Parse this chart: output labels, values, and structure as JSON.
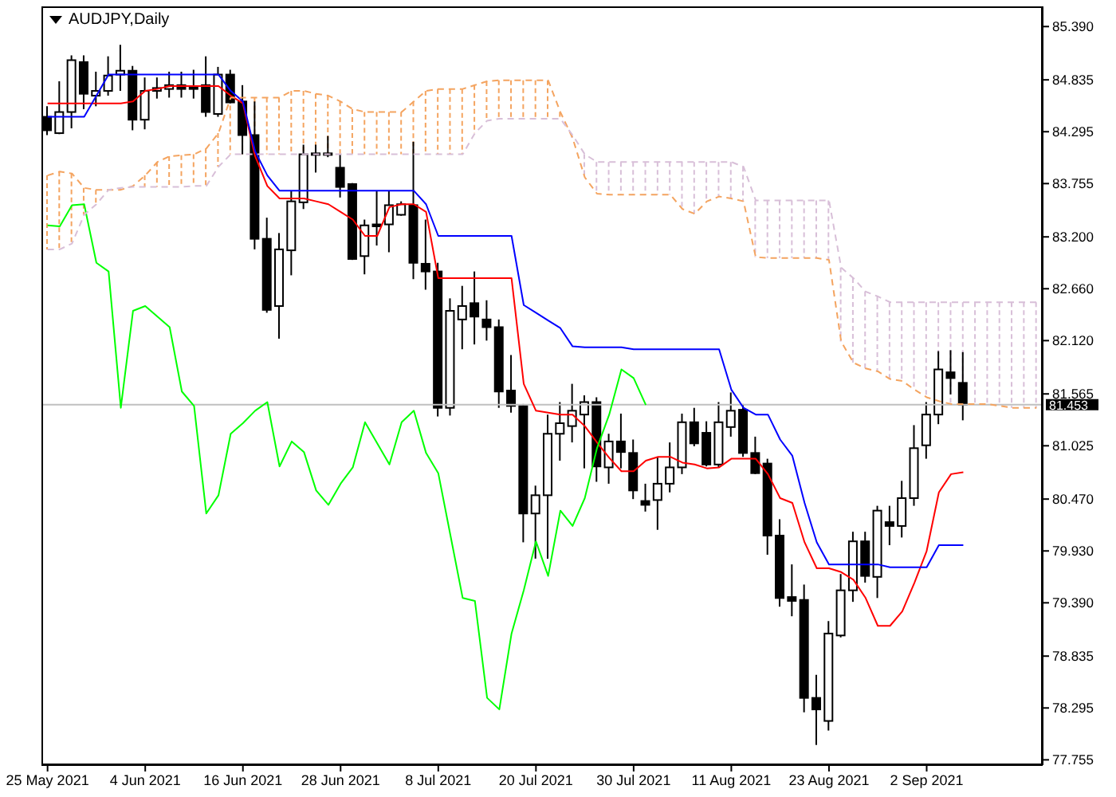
{
  "chart_data": {
    "type": "candlestick",
    "title": "AUDJPY,Daily",
    "categories": [
      "25 May 2021",
      null,
      null,
      null,
      null,
      null,
      null,
      null,
      "4 Jun 2021",
      null,
      null,
      null,
      null,
      null,
      null,
      null,
      "16 Jun 2021",
      null,
      null,
      null,
      null,
      null,
      null,
      null,
      "28 Jun 2021",
      null,
      null,
      null,
      null,
      null,
      null,
      null,
      "8 Jul 2021",
      null,
      null,
      null,
      null,
      null,
      null,
      null,
      "20 Jul 2021",
      null,
      null,
      null,
      null,
      null,
      null,
      null,
      "30 Jul 2021",
      null,
      null,
      null,
      null,
      null,
      null,
      null,
      "11 Aug 2021",
      null,
      null,
      null,
      null,
      null,
      null,
      null,
      "23 Aug 2021",
      null,
      null,
      null,
      null,
      null,
      null,
      null,
      "2 Sep 2021",
      null,
      null,
      null,
      null,
      null,
      null,
      null,
      null,
      null
    ],
    "ohlc": [
      [
        84.45,
        84.56,
        84.26,
        84.31
      ],
      [
        84.28,
        84.82,
        84.27,
        84.5
      ],
      [
        84.5,
        85.09,
        84.33,
        85.04
      ],
      [
        85.02,
        85.09,
        84.53,
        84.69
      ],
      [
        84.67,
        84.92,
        84.56,
        84.72
      ],
      [
        84.72,
        85.08,
        84.67,
        84.88
      ],
      [
        84.89,
        85.2,
        84.72,
        84.93
      ],
      [
        84.93,
        84.98,
        84.31,
        84.42
      ],
      [
        84.42,
        84.86,
        84.32,
        84.72
      ],
      [
        84.72,
        84.86,
        84.64,
        84.75
      ],
      [
        84.74,
        84.92,
        84.65,
        84.78
      ],
      [
        84.78,
        84.92,
        84.65,
        84.74
      ],
      [
        84.77,
        84.94,
        84.64,
        84.74
      ],
      [
        84.78,
        85.08,
        84.45,
        84.5
      ],
      [
        84.48,
        84.97,
        84.45,
        84.89
      ],
      [
        84.89,
        84.94,
        84.59,
        84.6
      ],
      [
        84.61,
        84.78,
        84.06,
        84.26
      ],
      [
        84.26,
        84.61,
        83.07,
        83.18
      ],
      [
        83.18,
        83.4,
        82.41,
        82.44
      ],
      [
        82.48,
        83.24,
        82.14,
        83.07
      ],
      [
        83.06,
        83.68,
        82.8,
        83.57
      ],
      [
        83.56,
        84.16,
        83.49,
        84.06
      ],
      [
        84.06,
        84.16,
        83.87,
        84.07
      ],
      [
        84.06,
        84.25,
        84.03,
        84.07
      ],
      [
        83.92,
        84.06,
        83.61,
        83.72
      ],
      [
        83.75,
        83.76,
        82.96,
        82.97
      ],
      [
        83.0,
        83.38,
        82.81,
        83.32
      ],
      [
        83.33,
        83.68,
        83.11,
        83.31
      ],
      [
        83.33,
        83.68,
        83.04,
        83.53
      ],
      [
        83.43,
        83.57,
        83.42,
        83.54
      ],
      [
        83.53,
        84.19,
        82.76,
        82.93
      ],
      [
        82.92,
        83.38,
        82.65,
        82.84
      ],
      [
        82.84,
        82.93,
        81.33,
        81.42
      ],
      [
        81.42,
        82.56,
        81.34,
        82.43
      ],
      [
        82.34,
        82.69,
        82.03,
        82.48
      ],
      [
        82.51,
        82.84,
        82.08,
        82.37
      ],
      [
        82.34,
        82.54,
        82.12,
        82.26
      ],
      [
        82.26,
        82.34,
        81.42,
        81.59
      ],
      [
        81.6,
        81.97,
        81.37,
        81.44
      ],
      [
        81.44,
        81.46,
        80.02,
        80.32
      ],
      [
        80.32,
        80.61,
        79.85,
        80.51
      ],
      [
        80.51,
        81.35,
        79.85,
        81.15
      ],
      [
        81.15,
        81.48,
        80.87,
        81.26
      ],
      [
        81.23,
        81.67,
        81.06,
        81.39
      ],
      [
        81.35,
        81.55,
        80.79,
        81.48
      ],
      [
        81.48,
        81.53,
        80.65,
        80.81
      ],
      [
        80.8,
        81.15,
        80.63,
        81.07
      ],
      [
        81.07,
        81.36,
        80.79,
        80.96
      ],
      [
        80.95,
        81.09,
        80.47,
        80.56
      ],
      [
        80.45,
        80.63,
        80.34,
        80.41
      ],
      [
        80.46,
        80.91,
        80.15,
        80.63
      ],
      [
        80.63,
        81.06,
        80.54,
        80.8
      ],
      [
        80.8,
        81.36,
        80.73,
        81.27
      ],
      [
        81.27,
        81.42,
        81.02,
        81.05
      ],
      [
        81.16,
        81.28,
        80.81,
        80.83
      ],
      [
        80.83,
        81.48,
        80.8,
        81.27
      ],
      [
        81.22,
        81.58,
        81.12,
        81.39
      ],
      [
        81.4,
        81.46,
        80.91,
        80.95
      ],
      [
        80.95,
        81.12,
        80.73,
        80.74
      ],
      [
        80.84,
        80.89,
        79.89,
        80.09
      ],
      [
        80.09,
        80.26,
        79.35,
        79.44
      ],
      [
        79.45,
        79.79,
        79.25,
        79.41
      ],
      [
        79.42,
        79.58,
        78.25,
        78.4
      ],
      [
        78.4,
        78.64,
        77.91,
        78.28
      ],
      [
        78.16,
        79.2,
        78.06,
        79.07
      ],
      [
        79.05,
        79.69,
        79.03,
        79.52
      ],
      [
        79.52,
        80.13,
        79.4,
        80.03
      ],
      [
        80.03,
        80.13,
        79.6,
        79.67
      ],
      [
        79.66,
        80.4,
        79.44,
        80.35
      ],
      [
        80.23,
        80.4,
        79.99,
        80.19
      ],
      [
        80.19,
        80.66,
        80.07,
        80.48
      ],
      [
        80.48,
        81.24,
        80.4,
        81.0
      ],
      [
        81.03,
        81.48,
        80.89,
        81.35
      ],
      [
        81.35,
        82.01,
        81.25,
        81.82
      ],
      [
        81.79,
        82.02,
        81.56,
        81.73
      ],
      [
        81.68,
        82.0,
        81.29,
        81.453
      ],
      null,
      null,
      null,
      null,
      null,
      null
    ],
    "series": [
      {
        "type": "line",
        "color": "#ff0000",
        "line_style": "solid",
        "values": [
          84.59,
          84.59,
          84.59,
          84.59,
          84.59,
          84.59,
          84.59,
          84.61,
          84.72,
          84.74,
          84.77,
          84.77,
          84.77,
          84.77,
          84.77,
          84.67,
          84.59,
          84.04,
          83.73,
          83.6,
          83.6,
          83.6,
          83.57,
          83.54,
          83.46,
          83.38,
          83.21,
          83.21,
          83.51,
          83.54,
          83.54,
          83.46,
          82.77,
          82.77,
          82.77,
          82.77,
          82.77,
          82.77,
          82.77,
          81.67,
          81.39,
          81.37,
          81.35,
          81.35,
          81.23,
          81.06,
          80.9,
          80.76,
          80.76,
          80.87,
          80.91,
          80.91,
          80.85,
          80.83,
          80.79,
          80.8,
          80.89,
          80.89,
          80.89,
          80.73,
          80.48,
          80.43,
          80.02,
          79.75,
          79.75,
          79.71,
          79.63,
          79.44,
          79.15,
          79.15,
          79.3,
          79.6,
          79.93,
          80.54,
          80.73,
          80.75,
          null,
          null,
          null,
          null,
          null,
          null
        ]
      },
      {
        "type": "line",
        "color": "#0000ff",
        "line_style": "solid",
        "values": [
          84.45,
          84.45,
          84.45,
          84.45,
          84.67,
          84.89,
          84.89,
          84.89,
          84.89,
          84.89,
          84.89,
          84.89,
          84.89,
          84.89,
          84.89,
          84.72,
          84.61,
          84.09,
          83.84,
          83.68,
          83.68,
          83.68,
          83.68,
          83.68,
          83.68,
          83.68,
          83.68,
          83.68,
          83.68,
          83.68,
          83.68,
          83.54,
          83.21,
          83.21,
          83.21,
          83.21,
          83.21,
          83.21,
          83.21,
          82.49,
          82.41,
          82.33,
          82.25,
          82.06,
          82.05,
          82.05,
          82.05,
          82.05,
          82.03,
          82.03,
          82.03,
          82.03,
          82.03,
          82.03,
          82.03,
          82.03,
          81.61,
          81.42,
          81.35,
          81.35,
          81.09,
          80.92,
          80.43,
          80.02,
          79.79,
          79.79,
          79.79,
          79.79,
          79.79,
          79.76,
          79.76,
          79.76,
          79.76,
          79.99,
          79.99,
          79.99,
          null,
          null,
          null,
          null,
          null,
          null
        ]
      },
      {
        "type": "line",
        "color": "#00ff00",
        "line_style": "solid",
        "values": [
          83.32,
          83.31,
          83.53,
          83.54,
          82.93,
          82.84,
          81.42,
          82.43,
          82.48,
          82.37,
          82.26,
          81.59,
          81.44,
          80.32,
          80.51,
          81.15,
          81.26,
          81.39,
          81.48,
          80.81,
          81.07,
          80.96,
          80.56,
          80.41,
          80.63,
          80.8,
          81.27,
          81.05,
          80.83,
          81.27,
          81.39,
          80.95,
          80.74,
          80.09,
          79.44,
          79.41,
          78.4,
          78.28,
          79.07,
          79.52,
          80.03,
          79.67,
          80.35,
          80.19,
          80.48,
          81.0,
          81.35,
          81.82,
          81.73,
          81.45,
          null,
          null,
          null,
          null,
          null,
          null,
          null,
          null,
          null,
          null,
          null,
          null,
          null,
          null,
          null,
          null,
          null,
          null,
          null,
          null,
          null,
          null,
          null,
          null,
          null,
          null,
          null,
          null,
          null,
          null,
          null,
          null
        ]
      },
      {
        "type": "line",
        "color": "#f4a460",
        "line_style": "dashed",
        "values": [
          83.84,
          83.88,
          83.86,
          83.71,
          83.69,
          83.69,
          83.69,
          83.73,
          83.84,
          83.98,
          84.04,
          84.05,
          84.06,
          84.12,
          84.28,
          84.65,
          84.65,
          84.65,
          84.65,
          84.65,
          84.72,
          84.72,
          84.69,
          84.67,
          84.61,
          84.53,
          84.5,
          84.5,
          84.5,
          84.5,
          84.61,
          84.72,
          84.74,
          84.74,
          84.74,
          84.78,
          84.82,
          84.83,
          84.83,
          84.83,
          84.83,
          84.83,
          84.5,
          84.23,
          83.82,
          83.65,
          83.64,
          83.64,
          83.64,
          83.64,
          83.64,
          83.64,
          83.49,
          83.44,
          83.57,
          83.62,
          83.6,
          83.57,
          82.99,
          82.98,
          82.98,
          82.98,
          82.98,
          82.98,
          82.96,
          82.11,
          81.89,
          81.83,
          81.8,
          81.72,
          81.7,
          81.61,
          81.53,
          81.49,
          81.46,
          81.46,
          81.46,
          81.46,
          81.44,
          81.42,
          81.42,
          81.42
        ]
      },
      {
        "type": "line",
        "color": "#d8bfd8",
        "line_style": "dashed",
        "values": [
          83.07,
          83.07,
          83.13,
          83.43,
          83.54,
          83.69,
          83.71,
          83.72,
          83.72,
          83.72,
          83.72,
          83.72,
          83.73,
          83.73,
          83.93,
          84.06,
          84.06,
          84.06,
          84.06,
          84.06,
          84.06,
          84.06,
          84.06,
          84.06,
          84.06,
          84.06,
          84.06,
          84.06,
          84.06,
          84.06,
          84.06,
          84.06,
          84.06,
          84.06,
          84.06,
          84.28,
          84.41,
          84.43,
          84.43,
          84.43,
          84.43,
          84.43,
          84.43,
          84.26,
          84.06,
          83.98,
          83.98,
          83.98,
          83.98,
          83.98,
          83.98,
          83.98,
          83.98,
          83.98,
          83.98,
          83.98,
          83.98,
          83.93,
          83.58,
          83.58,
          83.58,
          83.58,
          83.58,
          83.58,
          83.58,
          82.88,
          82.77,
          82.63,
          82.58,
          82.52,
          82.52,
          82.52,
          82.52,
          82.52,
          82.52,
          82.52,
          82.52,
          82.52,
          82.52,
          82.52,
          82.52,
          82.52
        ]
      }
    ],
    "ylim": [
      77.7,
      85.6
    ],
    "yticks": [
      {
        "value": 77.755,
        "label": "77.755"
      },
      {
        "value": 78.295,
        "label": "78.295"
      },
      {
        "value": 78.835,
        "label": "78.835"
      },
      {
        "value": 79.39,
        "label": "79.390"
      },
      {
        "value": 79.93,
        "label": "79.930"
      },
      {
        "value": 80.47,
        "label": "80.470"
      },
      {
        "value": 81.025,
        "label": "81.025"
      },
      {
        "value": 81.565,
        "label": "81.565"
      },
      {
        "value": 82.12,
        "label": "82.120"
      },
      {
        "value": 82.66,
        "label": "82.660"
      },
      {
        "value": 83.2,
        "label": "83.200"
      },
      {
        "value": 83.755,
        "label": "83.755"
      },
      {
        "value": 84.295,
        "label": "84.295"
      },
      {
        "value": 84.835,
        "label": "84.835"
      },
      {
        "value": 85.39,
        "label": "85.390"
      }
    ],
    "ref_lines": [
      {
        "axis": "y",
        "value": 81.453,
        "label": "81.453",
        "color": "#c0c0c0"
      }
    ],
    "marker": "none"
  }
}
